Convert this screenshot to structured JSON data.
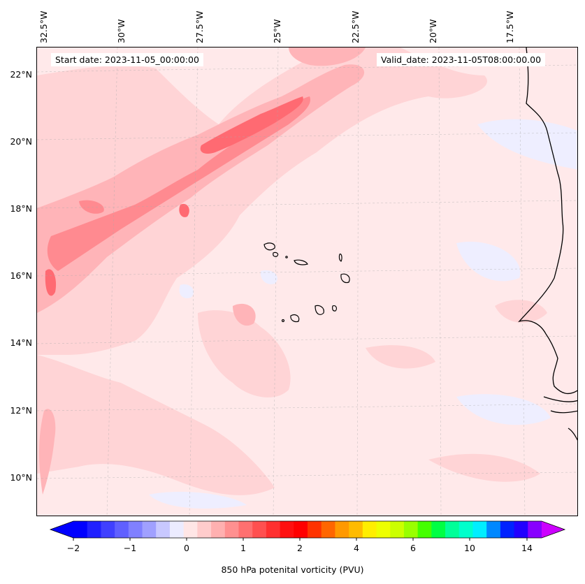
{
  "map": {
    "annotations": {
      "start": "Start date: 2023-11-05_00:00:00",
      "valid": "Valid_date: 2023-11-05T08:00:00.00"
    },
    "lon_labels": [
      "32.5°W",
      "30°W",
      "27.5°W",
      "25°W",
      "22.5°W",
      "20°W",
      "17.5°W"
    ],
    "lat_labels": [
      "22°N",
      "20°N",
      "18°N",
      "16°N",
      "14°N",
      "12°N",
      "10°N"
    ],
    "extent": {
      "lon_min": -32.6,
      "lon_max": -15.1,
      "lat_min": 8.9,
      "lat_max": 22.8
    },
    "colors": {
      "background": "#ffe9ea",
      "light": "#ffd4d6",
      "mid": "#ffb4b8",
      "strong": "#ff8a90",
      "stronger": "#ff6a72",
      "pale_blue": "#eeeeff",
      "coast": "#000000"
    }
  },
  "colorbar": {
    "label": "850 hPa potenital vorticity (PVU)",
    "tick_labels": [
      "−2",
      "−1",
      "0",
      "1",
      "2",
      "4",
      "6",
      "10",
      "14"
    ],
    "colors": [
      "#0000ff",
      "#2020ff",
      "#4040ff",
      "#6060ff",
      "#8080ff",
      "#a0a0ff",
      "#c8c8ff",
      "#ececff",
      "#ffe6e6",
      "#ffcccc",
      "#ffb0b0",
      "#ff9090",
      "#ff7070",
      "#ff5050",
      "#ff3030",
      "#ff1010",
      "#ff0000",
      "#ff3300",
      "#ff6600",
      "#ff9900",
      "#ffbb00",
      "#ffee00",
      "#eeff00",
      "#ccff00",
      "#99ff00",
      "#44ff00",
      "#00ff44",
      "#00ff99",
      "#00ffcc",
      "#00eeff",
      "#0088ff",
      "#0022ff",
      "#2200ff",
      "#8800ff"
    ],
    "under_color": "#0000ff",
    "over_color": "#cc00ff"
  }
}
